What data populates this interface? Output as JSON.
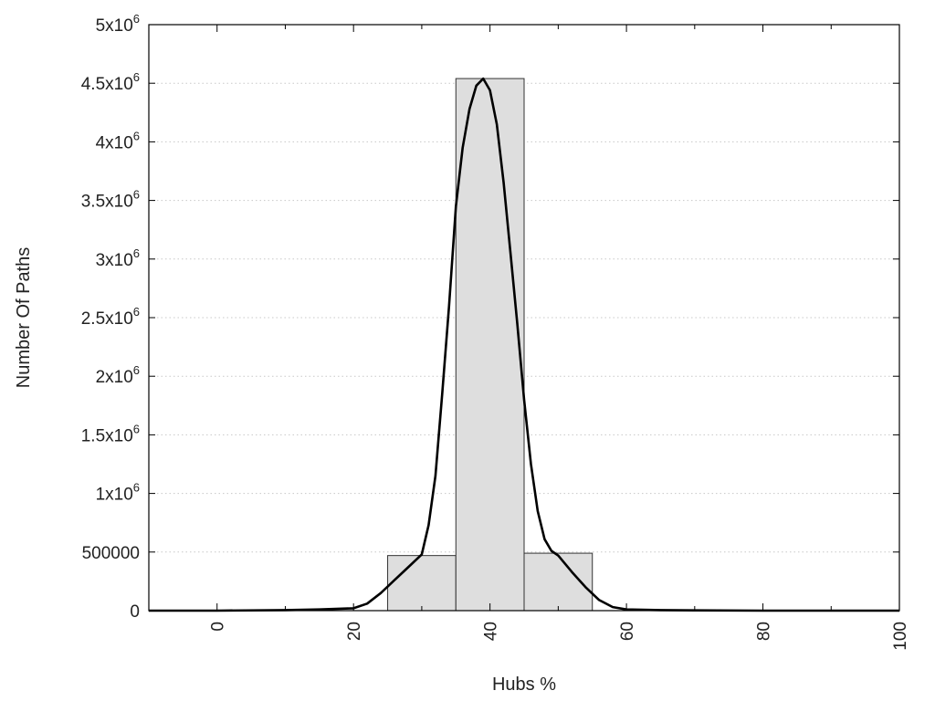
{
  "chart_data": {
    "type": "bar",
    "title": "",
    "xlabel": "Hubs %",
    "ylabel": "Number Of Paths",
    "xlim": [
      -10,
      100
    ],
    "ylim": [
      0,
      5000000
    ],
    "grid": {
      "y": true,
      "x": false,
      "style": "dotted"
    },
    "x_ticks": [
      {
        "value": 0,
        "label": "0"
      },
      {
        "value": 20,
        "label": "20"
      },
      {
        "value": 40,
        "label": "40"
      },
      {
        "value": 60,
        "label": "60"
      },
      {
        "value": 80,
        "label": "80"
      },
      {
        "value": 100,
        "label": "100"
      }
    ],
    "x_minor_ticks": [
      10,
      30,
      50,
      70,
      90
    ],
    "y_ticks": [
      {
        "value": 0,
        "base": "0",
        "exp": ""
      },
      {
        "value": 500000,
        "base": "500000",
        "exp": ""
      },
      {
        "value": 1000000,
        "base": "1x10",
        "exp": "6"
      },
      {
        "value": 1500000,
        "base": "1.5x10",
        "exp": "6"
      },
      {
        "value": 2000000,
        "base": "2x10",
        "exp": "6"
      },
      {
        "value": 2500000,
        "base": "2.5x10",
        "exp": "6"
      },
      {
        "value": 3000000,
        "base": "3x10",
        "exp": "6"
      },
      {
        "value": 3500000,
        "base": "3.5x10",
        "exp": "6"
      },
      {
        "value": 4000000,
        "base": "4x10",
        "exp": "6"
      },
      {
        "value": 4500000,
        "base": "4.5x10",
        "exp": "6"
      },
      {
        "value": 5000000,
        "base": "5x10",
        "exp": "6"
      }
    ],
    "bars": [
      {
        "x_start": 25,
        "x_end": 35,
        "value": 470000
      },
      {
        "x_start": 35,
        "x_end": 45,
        "value": 4540000
      },
      {
        "x_start": 45,
        "x_end": 55,
        "value": 490000
      }
    ],
    "curve": {
      "x": [
        -10,
        0,
        10,
        15,
        20,
        22,
        24,
        26,
        28,
        30,
        31,
        32,
        33,
        34,
        35,
        36,
        37,
        38,
        39,
        40,
        41,
        42,
        43,
        44,
        45,
        46,
        47,
        48,
        49,
        50,
        52,
        54,
        56,
        58,
        60,
        65,
        70,
        80,
        90,
        100
      ],
      "y": [
        0,
        0,
        5000,
        10000,
        20000,
        60000,
        150000,
        260000,
        370000,
        480000,
        730000,
        1150000,
        1850000,
        2600000,
        3450000,
        3950000,
        4280000,
        4480000,
        4540000,
        4440000,
        4150000,
        3650000,
        3050000,
        2450000,
        1800000,
        1250000,
        850000,
        610000,
        510000,
        470000,
        330000,
        200000,
        90000,
        30000,
        10000,
        5000,
        2000,
        0,
        0,
        0
      ]
    },
    "colors": {
      "bar_fill": "#dedede",
      "bar_stroke": "#333333",
      "curve": "#000000",
      "grid": "#c8c8c8",
      "axis": "#000000"
    }
  }
}
